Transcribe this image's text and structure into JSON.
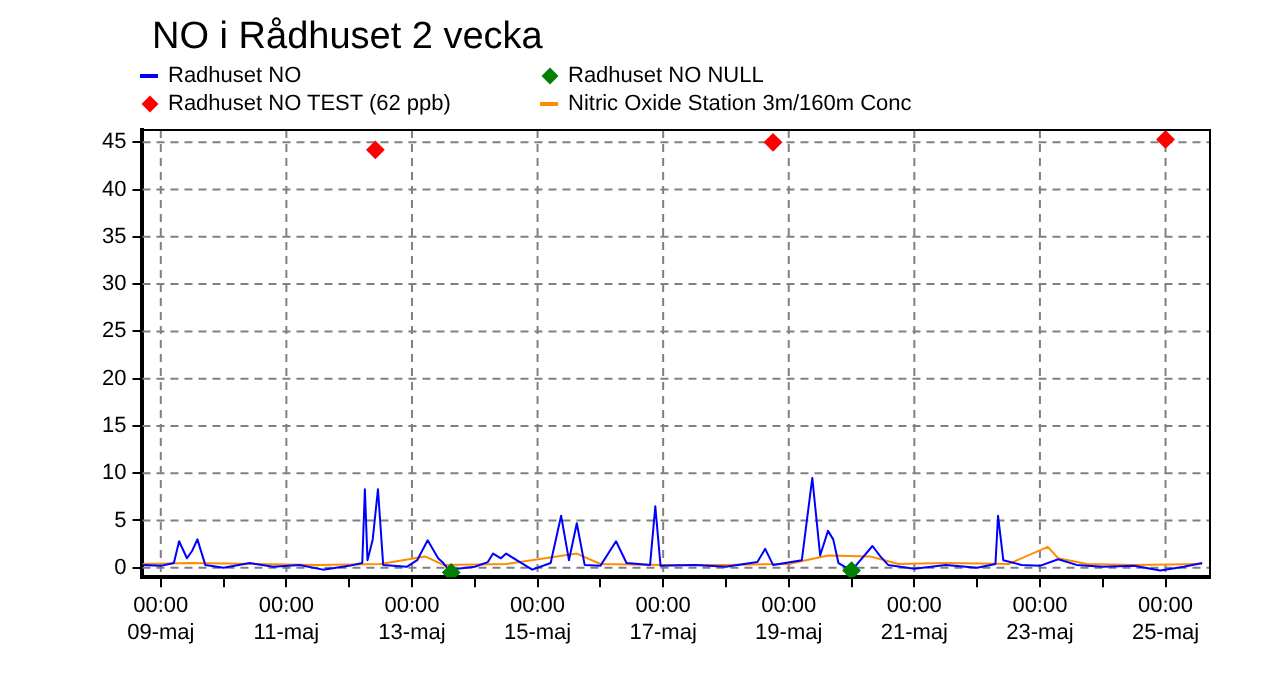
{
  "chart_data": {
    "type": "line",
    "title": "NO i Rådhuset 2 vecka",
    "series": [
      {
        "name": "Radhuset NO",
        "color": "#0000ff",
        "marker": "none",
        "x": [
          "--05-08T17:00",
          "--05-09T00:00",
          "--05-09T05:00",
          "--05-09T07:00",
          "--05-09T10:00",
          "--05-09T12:00",
          "--05-09T14:00",
          "--05-09T17:00",
          "--05-10T00:00",
          "--05-10T10:00",
          "--05-10T19:00",
          "--05-11T05:00",
          "--05-11T14:00",
          "--05-12T00:00",
          "--05-12T05:00",
          "--05-12T06:00",
          "--05-12T07:00",
          "--05-12T09:00",
          "--05-12T11:00",
          "--05-12T13:00",
          "--05-12T22:00",
          "--05-13T02:00",
          "--05-13T06:00",
          "--05-13T10:00",
          "--05-13T12:00",
          "--05-13T14:00",
          "--05-14T00:00",
          "--05-14T05:00",
          "--05-14T07:00",
          "--05-14T10:00",
          "--05-14T12:00",
          "--05-14T16:00",
          "--05-14T22:00",
          "--05-15T05:00",
          "--05-15T09:00",
          "--05-15T12:00",
          "--05-15T15:00",
          "--05-15T18:00",
          "--05-16T00:00",
          "--05-16T06:00",
          "--05-16T10:00",
          "--05-16T19:00",
          "--05-16T21:00",
          "--05-16T23:00",
          "--05-17T12:00",
          "--05-18T00:00",
          "--05-18T12:00",
          "--05-18T15:00",
          "--05-18T18:00",
          "--05-19T05:00",
          "--05-19T09:00",
          "--05-19T12:00",
          "--05-19T15:00",
          "--05-19T17:00",
          "--05-19T19:00",
          "--05-20T00:00",
          "--05-20T08:00",
          "--05-20T11:00",
          "--05-20T14:00",
          "--05-21T00:00",
          "--05-21T12:00",
          "--05-22T00:00",
          "--05-22T07:00",
          "--05-22T08:00",
          "--05-22T10:00",
          "--05-22T17:00",
          "--05-23T00:00",
          "--05-23T07:00",
          "--05-23T14:00",
          "--05-24T00:00",
          "--05-24T12:00",
          "--05-24T22:00",
          "--05-25T07:00",
          "--05-25T14:00"
        ],
        "values": [
          0.3,
          0.2,
          0.5,
          2.8,
          1.0,
          1.8,
          3.0,
          0.3,
          0.0,
          0.5,
          0.1,
          0.3,
          -0.2,
          0.2,
          0.5,
          8.3,
          0.8,
          3.0,
          8.3,
          0.3,
          0.1,
          0.8,
          2.9,
          1.0,
          0.5,
          -0.2,
          0.1,
          0.6,
          1.5,
          1.0,
          1.5,
          0.8,
          -0.2,
          0.5,
          5.5,
          0.8,
          4.7,
          0.3,
          0.2,
          2.8,
          0.5,
          0.3,
          6.5,
          0.2,
          0.3,
          0.1,
          0.6,
          2.0,
          0.3,
          0.8,
          9.5,
          1.3,
          3.9,
          3.0,
          0.5,
          -0.3,
          2.3,
          1.2,
          0.3,
          -0.1,
          0.3,
          0.0,
          0.4,
          5.5,
          0.8,
          0.3,
          0.2,
          0.9,
          0.3,
          0.1,
          0.2,
          -0.3,
          0.1,
          0.5
        ]
      },
      {
        "name": "Radhuset NO NULL",
        "type": "scatter",
        "color": "#008000",
        "marker": "diamond",
        "x": [
          "--05-13T15:00",
          "--05-20T00:00"
        ],
        "values": [
          -0.5,
          -0.3
        ]
      },
      {
        "name": "Radhuset NO TEST (62 ppb)",
        "type": "scatter",
        "color": "#ff0000",
        "marker": "diamond",
        "x": [
          "--05-12T10:00",
          "--05-18T18:00",
          "--05-25T00:00"
        ],
        "values": [
          44.2,
          45,
          45.3
        ]
      },
      {
        "name": "Nitric Oxide Station 3m/160m Conc",
        "color": "#ff8c00",
        "marker": "none",
        "x": [
          "--05-08T17:00",
          "--05-09T12:00",
          "--05-10T12:00",
          "--05-11T12:00",
          "--05-12T12:00",
          "--05-13T05:00",
          "--05-13T12:00",
          "--05-14T12:00",
          "--05-15T15:00",
          "--05-16T00:00",
          "--05-17T00:00",
          "--05-18T00:00",
          "--05-19T00:00",
          "--05-19T15:00",
          "--05-20T07:00",
          "--05-20T18:00",
          "--05-21T12:00",
          "--05-22T12:00",
          "--05-23T03:00",
          "--05-23T07:00",
          "--05-23T18:00",
          "--05-24T12:00",
          "--05-25T14:00"
        ],
        "values": [
          0.4,
          0.5,
          0.4,
          0.3,
          0.4,
          1.2,
          0.3,
          0.4,
          1.5,
          0.4,
          0.3,
          0.3,
          0.4,
          1.3,
          1.2,
          0.4,
          0.5,
          0.4,
          2.2,
          1.0,
          0.4,
          0.3,
          0.4
        ]
      }
    ],
    "xlim": [
      "--05-08T17:00",
      "--05-25T17:00"
    ],
    "xticks": [
      {
        "value": "--05-09T00:00",
        "label": "00:00\n09-maj"
      },
      {
        "value": "--05-10T00:00",
        "label": null
      },
      {
        "value": "--05-11T00:00",
        "label": "00:00\n11-maj"
      },
      {
        "value": "--05-12T00:00",
        "label": null
      },
      {
        "value": "--05-13T00:00",
        "label": "00:00\n13-maj"
      },
      {
        "value": "--05-14T00:00",
        "label": null
      },
      {
        "value": "--05-15T00:00",
        "label": "00:00\n15-maj"
      },
      {
        "value": "--05-16T00:00",
        "label": null
      },
      {
        "value": "--05-17T00:00",
        "label": "00:00\n17-maj"
      },
      {
        "value": "--05-18T00:00",
        "label": null
      },
      {
        "value": "--05-19T00:00",
        "label": "00:00\n19-maj"
      },
      {
        "value": "--05-20T00:00",
        "label": null
      },
      {
        "value": "--05-21T00:00",
        "label": "00:00\n21-maj"
      },
      {
        "value": "--05-22T00:00",
        "label": null
      },
      {
        "value": "--05-23T00:00",
        "label": "00:00\n23-maj"
      },
      {
        "value": "--05-24T00:00",
        "label": null
      },
      {
        "value": "--05-25T00:00",
        "label": "00:00\n25-maj"
      }
    ],
    "ylim": [
      -1,
      46.3
    ],
    "yticks": [
      0,
      5,
      10,
      15,
      20,
      25,
      30,
      35,
      40,
      45
    ],
    "grid": true,
    "legend": "top"
  }
}
